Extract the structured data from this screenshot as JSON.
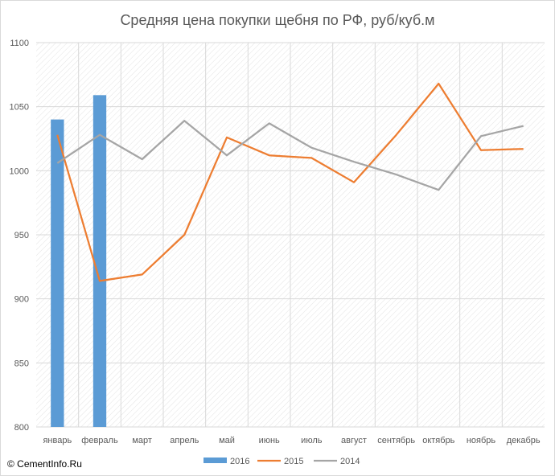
{
  "chart_data": {
    "type": "bar",
    "title": "Средняя цена покупки щебня по РФ, руб/куб.м",
    "xlabel": "",
    "ylabel": "",
    "categories": [
      "январь",
      "февраль",
      "март",
      "апрель",
      "май",
      "июнь",
      "июль",
      "август",
      "сентябрь",
      "октябрь",
      "ноябрь",
      "декабрь"
    ],
    "ylim": [
      800,
      1100
    ],
    "yticks": [
      800,
      850,
      900,
      950,
      1000,
      1050,
      1100
    ],
    "grid": true,
    "legend_position": "bottom",
    "series": [
      {
        "name": "2016",
        "kind": "bar",
        "color": "#5b9bd5",
        "values": [
          1040,
          1059,
          null,
          null,
          null,
          null,
          null,
          null,
          null,
          null,
          null,
          null
        ]
      },
      {
        "name": "2015",
        "kind": "line",
        "color": "#ed7d31",
        "values": [
          1028,
          914,
          919,
          950,
          1026,
          1012,
          1010,
          991,
          1028,
          1068,
          1016,
          1017
        ]
      },
      {
        "name": "2014",
        "kind": "line",
        "color": "#a5a5a5",
        "values": [
          1006,
          1028,
          1009,
          1039,
          1012,
          1037,
          1018,
          1007,
          997,
          985,
          1027,
          1035
        ]
      }
    ]
  },
  "footer": {
    "copyright": "© CementInfo.Ru"
  }
}
